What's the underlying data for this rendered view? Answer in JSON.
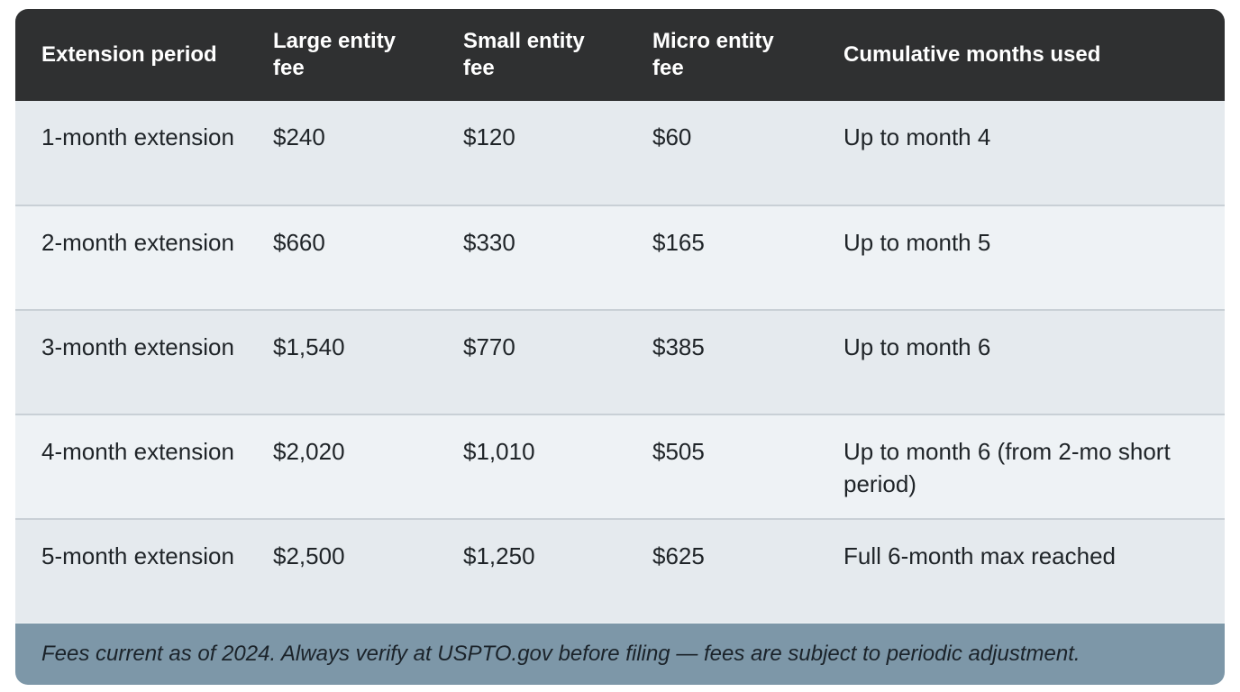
{
  "table": {
    "headers": [
      "Extension period",
      "Large entity fee",
      "Small entity fee",
      "Micro entity fee",
      "Cumulative months used"
    ],
    "rows": [
      {
        "period": "1-month extension",
        "large": "$240",
        "small": "$120",
        "micro": "$60",
        "cumulative": "Up to month 4"
      },
      {
        "period": "2-month extension",
        "large": "$660",
        "small": "$330",
        "micro": "$165",
        "cumulative": "Up to month 5"
      },
      {
        "period": "3-month extension",
        "large": "$1,540",
        "small": "$770",
        "micro": "$385",
        "cumulative": "Up to month 6"
      },
      {
        "period": "4-month extension",
        "large": "$2,020",
        "small": "$1,010",
        "micro": "$505",
        "cumulative": "Up to month 6 (from 2-mo short period)"
      },
      {
        "period": "5-month extension",
        "large": "$2,500",
        "small": "$1,250",
        "micro": "$625",
        "cumulative": "Full 6-month max reached"
      }
    ]
  },
  "footer": {
    "note": "Fees current as of 2024. Always verify at USPTO.gov before filing — fees are subject to periodic adjustment."
  }
}
